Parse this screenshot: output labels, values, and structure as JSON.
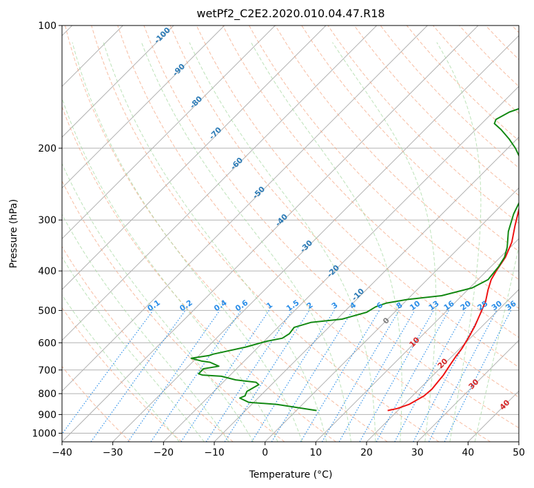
{
  "chart_data": {
    "type": "line",
    "title": "wetPf2_C2E2.2020.010.04.47.R18",
    "xlabel": "Temperature (°C)",
    "ylabel": "Pressure (hPa)",
    "xlim": [
      -40,
      50
    ],
    "ylim": [
      1050,
      100
    ],
    "y_scale": "log",
    "grid": true,
    "x_ticks": [
      -40,
      -30,
      -20,
      -10,
      0,
      10,
      20,
      30,
      40,
      50
    ],
    "y_ticks": [
      100,
      200,
      300,
      400,
      500,
      600,
      700,
      800,
      900,
      1000
    ],
    "colors": {
      "temperature": "#ee1111",
      "dewpoint": "#118811",
      "dry_adiabat": "#f4a582",
      "moist_adiabat": "#a6d8a0",
      "mixing_ratio": "#2b8ee8",
      "isotherm": "#999999",
      "frost_label": "#2c7bb6",
      "positive_label": "#d62728"
    },
    "series": [
      {
        "color_key": "temperature",
        "points": [
          [
            18.0,
            880
          ],
          [
            19.5,
            870
          ],
          [
            21.0,
            850
          ],
          [
            22.3,
            810
          ],
          [
            22.5,
            780
          ],
          [
            22.0,
            720
          ],
          [
            21.3,
            680
          ],
          [
            20.8,
            650
          ],
          [
            20.4,
            620
          ],
          [
            19.5,
            580
          ],
          [
            18.5,
            545
          ],
          [
            17.2,
            510
          ],
          [
            15.8,
            475
          ],
          [
            14.0,
            445
          ],
          [
            12.6,
            420
          ],
          [
            11.9,
            400
          ],
          [
            11.0,
            370
          ],
          [
            9.3,
            340
          ],
          [
            6.7,
            310
          ],
          [
            4.0,
            280
          ],
          [
            2.3,
            258
          ],
          [
            2.4,
            240
          ],
          [
            3.5,
            222
          ],
          [
            5.5,
            205
          ],
          [
            7.5,
            190
          ],
          [
            8.5,
            178
          ],
          [
            8.5,
            165
          ],
          [
            9.0,
            150
          ],
          [
            9.8,
            135
          ],
          [
            10.2,
            120
          ],
          [
            10.8,
            110
          ],
          [
            11.5,
            100
          ]
        ]
      },
      {
        "color_key": "dewpoint",
        "points": [
          [
            4.0,
            880
          ],
          [
            -5.0,
            850
          ],
          [
            -11.0,
            840
          ],
          [
            -13.6,
            820
          ],
          [
            -13.0,
            810
          ],
          [
            -13.5,
            790
          ],
          [
            -12.5,
            760
          ],
          [
            -13.5,
            750
          ],
          [
            -18.0,
            740
          ],
          [
            -21.5,
            725
          ],
          [
            -25.5,
            720
          ],
          [
            -26.5,
            715
          ],
          [
            -26.5,
            695
          ],
          [
            -24.0,
            685
          ],
          [
            -26.5,
            670
          ],
          [
            -28.5,
            665
          ],
          [
            -31.0,
            655
          ],
          [
            -28.0,
            645
          ],
          [
            -27.5,
            640
          ],
          [
            -26.5,
            635
          ],
          [
            -22.5,
            615
          ],
          [
            -19.5,
            595
          ],
          [
            -17.0,
            585
          ],
          [
            -16.5,
            570
          ],
          [
            -16.8,
            550
          ],
          [
            -14.5,
            535
          ],
          [
            -9.0,
            525
          ],
          [
            -5.5,
            505
          ],
          [
            -4.8,
            490
          ],
          [
            -3.5,
            480
          ],
          [
            0.0,
            470
          ],
          [
            6.0,
            460
          ],
          [
            10.5,
            440
          ],
          [
            12.0,
            420
          ],
          [
            11.5,
            390
          ],
          [
            10.8,
            370
          ],
          [
            9.4,
            350
          ],
          [
            6.5,
            320
          ],
          [
            4.1,
            290
          ],
          [
            2.5,
            265
          ],
          [
            0.7,
            248
          ],
          [
            -2.5,
            228
          ],
          [
            -5.5,
            212
          ],
          [
            -8.5,
            200
          ],
          [
            -11.5,
            190
          ],
          [
            -15.0,
            180
          ],
          [
            -17.5,
            174
          ],
          [
            -18.0,
            170
          ],
          [
            -16.8,
            163
          ],
          [
            -13.5,
            155
          ],
          [
            -11.0,
            148
          ],
          [
            -10.5,
            140
          ],
          [
            -10.4,
            133
          ],
          [
            -10.2,
            127
          ],
          [
            -9.5,
            122
          ],
          [
            -9.0,
            118
          ],
          [
            -8.5,
            115
          ],
          [
            -8.0,
            110
          ],
          [
            -5.0,
            105
          ],
          [
            -0.5,
            100
          ]
        ]
      }
    ],
    "frost_point_labels": [
      "-100",
      "-90",
      "-80",
      "-70",
      "-60",
      "-50",
      "-40",
      "-30",
      "-20",
      "-10"
    ],
    "zero_label": "0",
    "positive_labels": [
      "10",
      "20",
      "30",
      "40"
    ],
    "mixing_ratio_labels": [
      "0.1",
      "0.2",
      "0.4",
      "0.6",
      "1",
      "1.5",
      "2",
      "3",
      "4",
      "6",
      "8",
      "10",
      "13",
      "16",
      "20",
      "25",
      "30",
      "36"
    ]
  }
}
